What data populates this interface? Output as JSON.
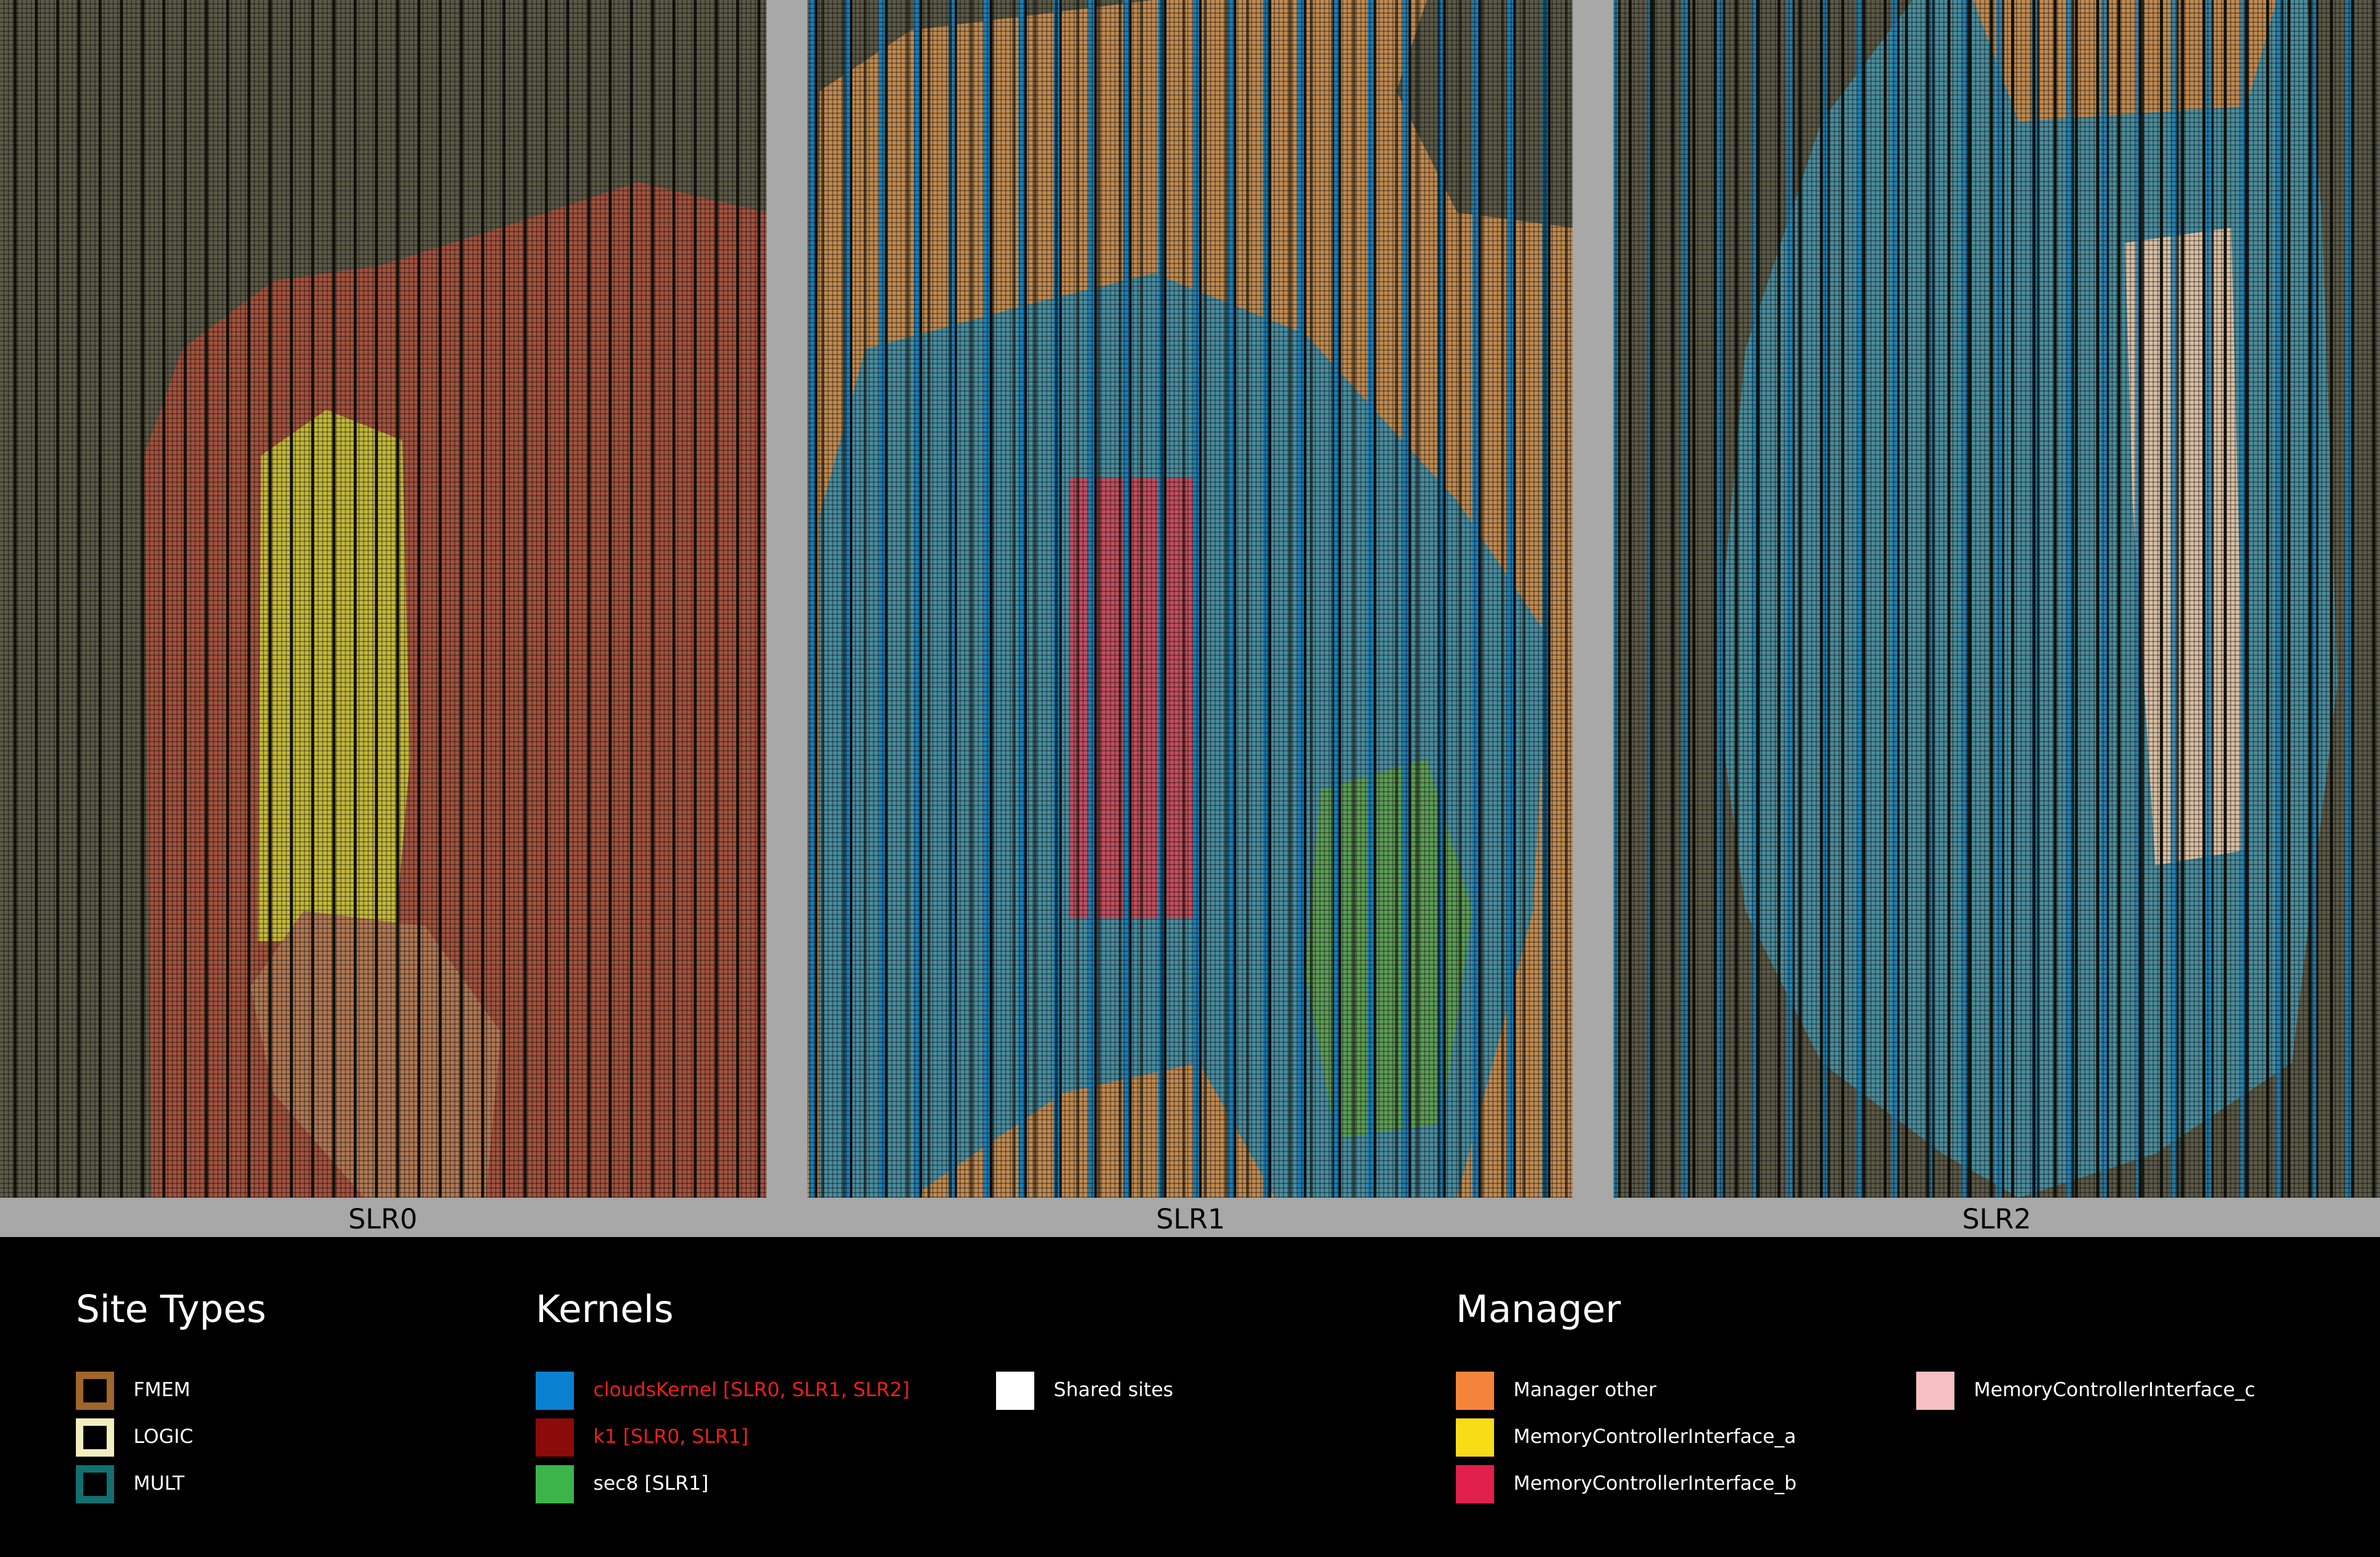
{
  "panels": [
    {
      "label": "SLR0"
    },
    {
      "label": "SLR1"
    },
    {
      "label": "SLR2"
    }
  ],
  "legend": [
    {
      "title": "Site Types",
      "items": [
        {
          "label": "FMEM",
          "color": "#a0662a",
          "outlined": true
        },
        {
          "label": "LOGIC",
          "color": "#f3eec0",
          "outlined": true
        },
        {
          "label": "MULT",
          "color": "#127070",
          "outlined": true
        }
      ]
    },
    {
      "title": "Kernels",
      "items": [
        {
          "label": "cloudsKernel [SLR0, SLR1, SLR2]",
          "color": "#0a80d0",
          "label_color": "#e8201c"
        },
        {
          "label": "k1 [SLR0, SLR1]",
          "color": "#8b0a0a",
          "label_color": "#e8201c"
        },
        {
          "label": "sec8 [SLR1]",
          "color": "#3cb44a"
        },
        {
          "label": "Shared sites",
          "color": "#ffffff"
        }
      ]
    },
    {
      "title": "Manager",
      "items": [
        {
          "label": "Manager other",
          "color": "#f5843a"
        },
        {
          "label": "MemoryControllerInterface_a",
          "color": "#f7dc16"
        },
        {
          "label": "MemoryControllerInterface_b",
          "color": "#e2204c"
        },
        {
          "label": "MemoryControllerInterface_c",
          "color": "#f7c0c2"
        }
      ]
    }
  ]
}
